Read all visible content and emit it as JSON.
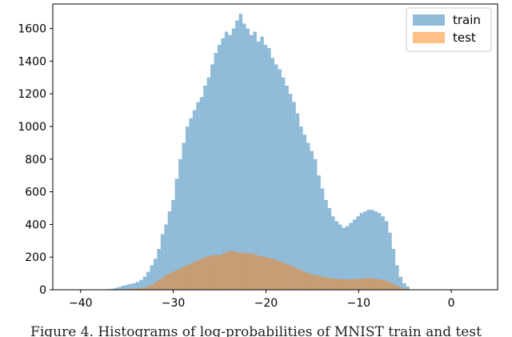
{
  "chart_data": {
    "type": "bar",
    "subtype": "histogram",
    "title": "",
    "xlabel": "",
    "ylabel": "",
    "xlim": [
      -43,
      5
    ],
    "ylim": [
      0,
      1750
    ],
    "xticks": [
      -40,
      -30,
      -20,
      -10,
      0
    ],
    "yticks": [
      0,
      200,
      400,
      600,
      800,
      1000,
      1200,
      1400,
      1600
    ],
    "grid": false,
    "legend": "top-right",
    "bin_edges": [
      -37.5,
      -4.5
    ],
    "series": [
      {
        "name": "train",
        "color": "#1f77b4",
        "opacity": 0.5,
        "values": [
          3,
          4,
          7,
          12,
          18,
          25,
          30,
          35,
          40,
          48,
          60,
          80,
          110,
          150,
          190,
          250,
          340,
          400,
          480,
          550,
          680,
          800,
          900,
          1000,
          1050,
          1100,
          1150,
          1180,
          1250,
          1300,
          1380,
          1450,
          1500,
          1540,
          1580,
          1560,
          1600,
          1650,
          1690,
          1630,
          1600,
          1560,
          1580,
          1520,
          1550,
          1500,
          1480,
          1420,
          1380,
          1350,
          1300,
          1250,
          1200,
          1150,
          1080,
          1000,
          950,
          900,
          850,
          800,
          700,
          620,
          550,
          500,
          450,
          420,
          400,
          380,
          390,
          410,
          430,
          450,
          470,
          480,
          490,
          490,
          480,
          470,
          450,
          420,
          350,
          250,
          150,
          80,
          40,
          20
        ]
      },
      {
        "name": "test",
        "color": "#ff7f0e",
        "opacity": 0.5,
        "values": [
          0,
          1,
          1,
          2,
          3,
          4,
          5,
          6,
          8,
          10,
          12,
          14,
          20,
          30,
          45,
          60,
          70,
          90,
          100,
          110,
          120,
          130,
          140,
          150,
          160,
          170,
          180,
          190,
          200,
          205,
          210,
          215,
          210,
          220,
          230,
          240,
          235,
          230,
          225,
          230,
          220,
          225,
          215,
          210,
          205,
          200,
          195,
          190,
          180,
          175,
          165,
          160,
          150,
          140,
          130,
          120,
          110,
          100,
          95,
          90,
          85,
          80,
          75,
          72,
          70,
          68,
          66,
          65,
          64,
          63,
          65,
          66,
          68,
          70,
          72,
          70,
          68,
          65,
          60,
          55,
          45,
          35,
          25,
          15,
          8,
          4
        ]
      }
    ]
  },
  "caption": {
    "text": "Figure 4. Histograms of log-probabilities of MNIST train and test"
  }
}
